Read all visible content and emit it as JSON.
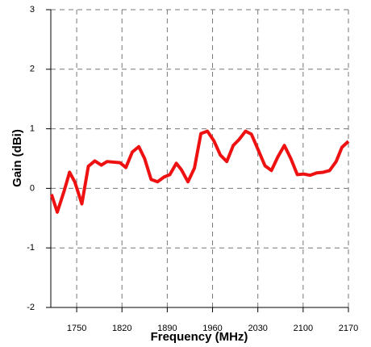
{
  "chart_data": {
    "type": "line",
    "x_label": "Frequency (MHz)",
    "y_label": "Gain (dBi)",
    "xlim": [
      1710,
      2170
    ],
    "xticks": [
      1750,
      1820,
      1890,
      1960,
      2030,
      2100,
      2170
    ],
    "ylim": [
      -2,
      3
    ],
    "yticks": [
      -2,
      -1,
      0,
      1,
      2,
      3
    ],
    "grid": true,
    "series": [
      {
        "color": "#ee1111",
        "x": [
          1711,
          1720,
          1731,
          1739,
          1747,
          1758,
          1768,
          1778,
          1788,
          1797,
          1817,
          1826,
          1836,
          1846,
          1855,
          1865,
          1875,
          1885,
          1894,
          1904,
          1912,
          1922,
          1932,
          1942,
          1952,
          1962,
          1972,
          1982,
          1992,
          2001,
          2011,
          2020,
          2030,
          2041,
          2051,
          2061,
          2071,
          2081,
          2091,
          2101,
          2111,
          2121,
          2131,
          2141,
          2151,
          2160,
          2170
        ],
        "values": [
          -0.1,
          -0.4,
          -0.03,
          0.27,
          0.11,
          -0.26,
          0.37,
          0.46,
          0.39,
          0.45,
          0.43,
          0.35,
          0.61,
          0.7,
          0.5,
          0.15,
          0.11,
          0.19,
          0.23,
          0.42,
          0.31,
          0.11,
          0.34,
          0.92,
          0.96,
          0.8,
          0.56,
          0.45,
          0.72,
          0.82,
          0.96,
          0.91,
          0.66,
          0.38,
          0.3,
          0.53,
          0.72,
          0.5,
          0.23,
          0.24,
          0.22,
          0.26,
          0.27,
          0.3,
          0.45,
          0.69,
          0.79
        ]
      }
    ]
  }
}
